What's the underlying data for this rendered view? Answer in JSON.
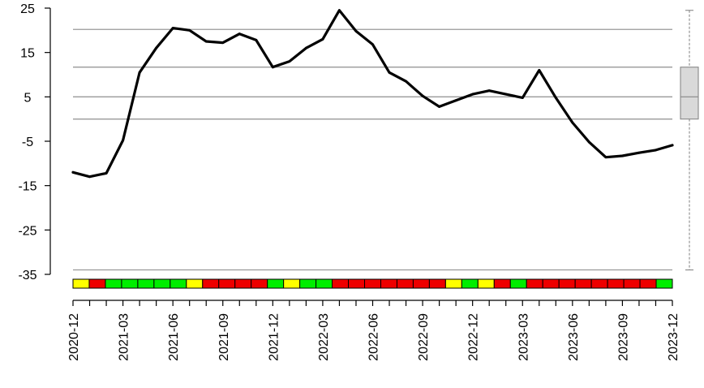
{
  "chart_data": {
    "type": "line",
    "yticks": [
      "25",
      "15",
      "5",
      "-5",
      "-15",
      "-25",
      "-35"
    ],
    "ylim": [
      -35,
      25
    ],
    "xtick_labels": [
      "2020-12",
      "2021-03",
      "2021-06",
      "2021-09",
      "2021-12",
      "2022-03",
      "2022-06",
      "2022-09",
      "2022-12",
      "2023-03",
      "2023-06",
      "2023-09",
      "2023-12"
    ],
    "reference_lines": [
      20.2,
      11.7,
      5.0,
      0.0,
      -34.0
    ],
    "boxplot": {
      "min": -34.0,
      "q1": 0.0,
      "median": 5.0,
      "q3": 11.7,
      "max": 24.5
    },
    "series": [
      {
        "months": [
          "2020-12",
          "2021-01",
          "2021-02",
          "2021-03",
          "2021-04",
          "2021-05",
          "2021-06",
          "2021-07",
          "2021-08",
          "2021-09",
          "2021-10",
          "2021-11",
          "2021-12",
          "2022-01",
          "2022-02",
          "2022-03",
          "2022-04",
          "2022-05",
          "2022-06",
          "2022-07",
          "2022-08",
          "2022-09",
          "2022-10",
          "2022-11",
          "2022-12",
          "2023-01",
          "2023-02",
          "2023-03",
          "2023-04",
          "2023-05",
          "2023-06",
          "2023-07",
          "2023-08",
          "2023-09",
          "2023-10",
          "2023-11",
          "2023-12"
        ],
        "values": [
          -12.0,
          -13.0,
          -12.2,
          -4.8,
          10.5,
          16.0,
          20.5,
          20.0,
          17.5,
          17.2,
          19.2,
          17.8,
          11.7,
          13.0,
          16.0,
          18.0,
          24.5,
          19.8,
          16.8,
          10.5,
          8.5,
          5.2,
          2.8,
          4.2,
          5.6,
          6.4,
          5.6,
          4.8,
          11.0,
          4.8,
          -0.8,
          -5.2,
          -8.6,
          -8.3,
          -7.6,
          -7.0,
          -5.9
        ],
        "color": "#000000"
      }
    ],
    "status_colors": [
      "yellow",
      "red",
      "green",
      "green",
      "green",
      "green",
      "green",
      "yellow",
      "red",
      "red",
      "red",
      "red",
      "green",
      "yellow",
      "green",
      "green",
      "red",
      "red",
      "red",
      "red",
      "red",
      "red",
      "red",
      "yellow",
      "green",
      "yellow",
      "red",
      "green",
      "red",
      "red",
      "red",
      "red",
      "red",
      "red",
      "red",
      "red",
      "green"
    ]
  },
  "colors": {
    "green": "#00ee00",
    "red": "#ee0000",
    "yellow": "#ffff00",
    "line": "#000000",
    "grid": "#999999",
    "box_fill": "#d9d9d9"
  }
}
